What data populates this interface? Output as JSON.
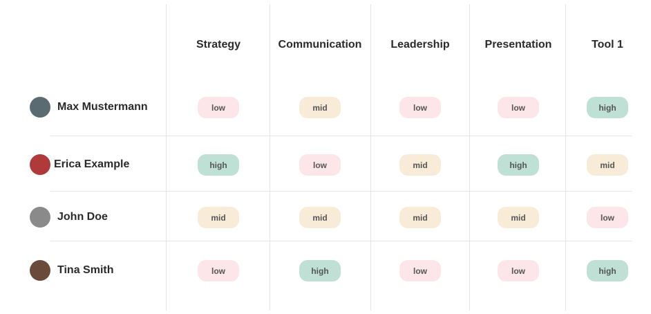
{
  "table": {
    "columns": [
      "Strategy",
      "Communication",
      "Leadership",
      "Presentation",
      "Tool 1"
    ],
    "level_colors": {
      "low": "#fde6ea",
      "mid": "#f8ecd9",
      "high": "#bfe0d4"
    },
    "rows": [
      {
        "name": "Max Mustermann",
        "levels": [
          "low",
          "mid",
          "low",
          "low",
          "high"
        ]
      },
      {
        "name": "Erica Example",
        "levels": [
          "high",
          "low",
          "mid",
          "high",
          "mid"
        ]
      },
      {
        "name": "John Doe",
        "levels": [
          "mid",
          "mid",
          "mid",
          "mid",
          "low"
        ]
      },
      {
        "name": "Tina Smith",
        "levels": [
          "low",
          "high",
          "low",
          "low",
          "high"
        ]
      }
    ]
  }
}
